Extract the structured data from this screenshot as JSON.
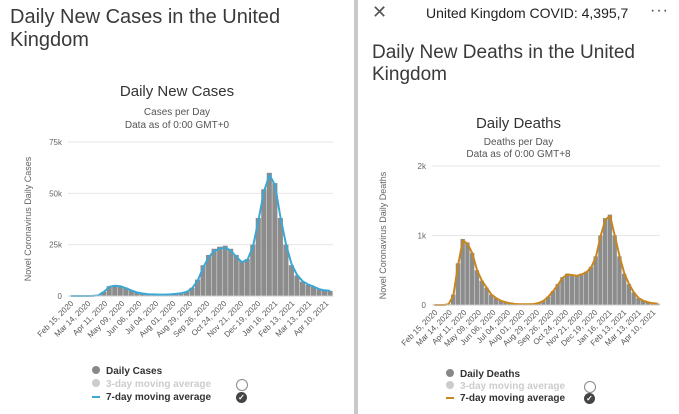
{
  "left": {
    "page_title": "Daily New Cases in the United Kingdom",
    "chart_title": "Daily New Cases",
    "subtitle_1": "Cases per Day",
    "subtitle_2": "Data as of 0:00 GMT+0",
    "legend": {
      "daily": "Daily Cases",
      "three_day": "3-day moving average",
      "seven_day": "7-day moving average"
    }
  },
  "right": {
    "topbar_title": "United Kingdom COVID: 4,395,7",
    "close_glyph": "✕",
    "more_glyph": "···",
    "page_title": "Daily New Deaths in the United Kingdom",
    "chart_title": "Daily Deaths",
    "subtitle_1": "Deaths per Day",
    "subtitle_2": "Data as of 0:00 GMT+8",
    "legend": {
      "daily": "Daily Deaths",
      "three_day": "3-day moving average",
      "seven_day": "7-day moving average"
    }
  },
  "colors": {
    "bars": "#8c8c8c",
    "cases_line": "#3aa7d4",
    "deaths_line": "#c8861c",
    "inactive": "#cccccc"
  },
  "icons": {
    "close": "close-icon",
    "more": "more-icon"
  },
  "chart_data": [
    {
      "type": "bar",
      "title": "Daily New Cases",
      "ylabel": "Novel Coronavirus Daily Cases",
      "ylim": [
        0,
        75000
      ],
      "yticks": [
        "0",
        "25k",
        "50k",
        "75k"
      ],
      "ytick_values": [
        0,
        25000,
        50000,
        75000
      ],
      "xticks": [
        "Feb 15, 2020",
        "Mar 14, 2020",
        "Apr 11, 2020",
        "May 09, 2020",
        "Jun 06, 2020",
        "Jul 04, 2020",
        "Aug 01, 2020",
        "Aug 29, 2020",
        "Sep 26, 2020",
        "Oct 24, 2020",
        "Nov 21, 2020",
        "Dec 19, 2020",
        "Jan 16, 2021",
        "Feb 13, 2021",
        "Mar 13, 2021",
        "Apr 10, 2021"
      ],
      "series": [
        {
          "name": "Daily Cases",
          "values": [
            0,
            0,
            0,
            0,
            50,
            300,
            2000,
            4800,
            5200,
            5000,
            4000,
            2800,
            1800,
            1200,
            900,
            800,
            700,
            700,
            800,
            1000,
            1300,
            2000,
            4000,
            8000,
            15000,
            20000,
            23000,
            24000,
            24500,
            23000,
            20000,
            17000,
            18000,
            25000,
            38000,
            52000,
            60000,
            55000,
            38000,
            25000,
            15000,
            10000,
            7000,
            5500,
            4500,
            3200,
            2700,
            2500
          ]
        },
        {
          "name": "7-day moving average",
          "values": [
            0,
            0,
            0,
            0,
            50,
            300,
            2000,
            4500,
            5000,
            4700,
            3800,
            2700,
            1700,
            1200,
            900,
            800,
            700,
            700,
            800,
            1000,
            1300,
            2000,
            3800,
            7500,
            14000,
            19000,
            22000,
            23000,
            23500,
            22000,
            19000,
            16500,
            17500,
            24000,
            37000,
            51000,
            59000,
            54000,
            38000,
            25000,
            15500,
            10200,
            7200,
            5600,
            4600,
            3300,
            2800,
            2500
          ]
        }
      ]
    },
    {
      "type": "bar",
      "title": "Daily Deaths",
      "ylabel": "Novel Coronavirus Daily Deaths",
      "ylim": [
        0,
        2000
      ],
      "yticks": [
        "0",
        "1k",
        "2k"
      ],
      "ytick_values": [
        0,
        1000,
        2000
      ],
      "xticks": [
        "Feb 15, 2020",
        "Mar 14, 2020",
        "Apr 11, 2020",
        "May 09, 2020",
        "Jun 06, 2020",
        "Jul 04, 2020",
        "Aug 01, 2020",
        "Aug 29, 2020",
        "Sep 26, 2020",
        "Oct 24, 2020",
        "Nov 21, 2020",
        "Dec 19, 2020",
        "Jan 16, 2021",
        "Feb 13, 2021",
        "Mar 13, 2021",
        "Apr 10, 2021"
      ],
      "series": [
        {
          "name": "Daily Deaths",
          "values": [
            0,
            0,
            0,
            10,
            150,
            600,
            950,
            900,
            750,
            500,
            350,
            250,
            150,
            100,
            60,
            40,
            25,
            15,
            10,
            10,
            10,
            15,
            30,
            60,
            120,
            200,
            300,
            400,
            450,
            430,
            420,
            450,
            480,
            550,
            700,
            1000,
            1250,
            1300,
            1000,
            700,
            450,
            300,
            180,
            100,
            60,
            40,
            25,
            20
          ]
        },
        {
          "name": "7-day moving average",
          "values": [
            0,
            0,
            0,
            10,
            140,
            580,
            930,
            880,
            740,
            500,
            350,
            250,
            150,
            100,
            60,
            40,
            25,
            15,
            10,
            10,
            10,
            15,
            30,
            60,
            120,
            200,
            290,
            390,
            440,
            430,
            420,
            440,
            470,
            540,
            690,
            990,
            1230,
            1280,
            990,
            700,
            450,
            300,
            180,
            100,
            60,
            40,
            25,
            20
          ]
        }
      ]
    }
  ]
}
